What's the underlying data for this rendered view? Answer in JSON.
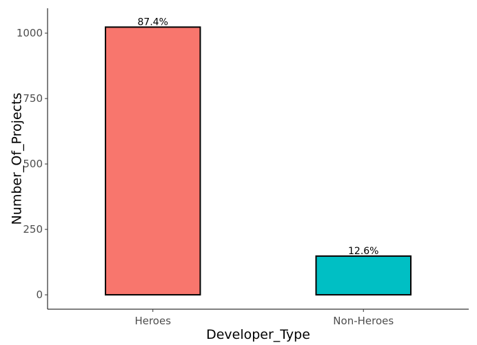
{
  "chart_data": {
    "type": "bar",
    "title": "",
    "xlabel": "Developer_Type",
    "ylabel": "Number_Of_Projects",
    "categories": [
      "Heroes",
      "Non-Heroes"
    ],
    "values": [
      1023,
      148
    ],
    "data_labels": [
      "87.4%",
      "12.6%"
    ],
    "colors": [
      "#F8766D",
      "#00BFC4"
    ],
    "bar_outline": "#000000",
    "ylim": [
      -55,
      1095
    ],
    "yticks": [
      0,
      250,
      500,
      750,
      1000
    ],
    "ytick_labels": [
      "0",
      "250",
      "500",
      "750",
      "1000"
    ],
    "grid": false,
    "legend": "none"
  }
}
